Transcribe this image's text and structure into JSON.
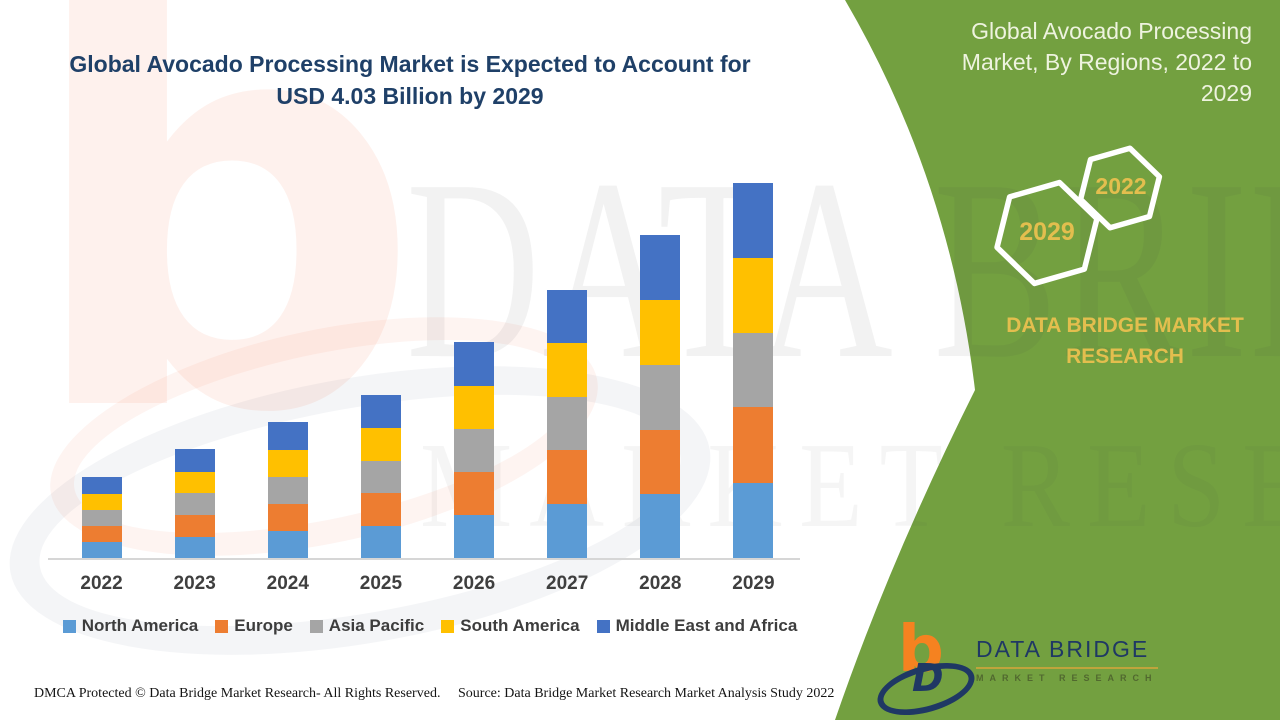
{
  "colors": {
    "green_panel": "#73A040",
    "title_blue": "#1F4068",
    "gold": "#E3BE4E",
    "logo_navy": "#1F3864",
    "logo_orange": "#F58220",
    "axis_gray": "#D6D6D6"
  },
  "main_title": {
    "line1": "Global Avocado Processing Market is Expected to Account for",
    "line2": "USD 4.03 Billion by 2029"
  },
  "chart_data": {
    "type": "bar",
    "stacked": true,
    "title": "Global Avocado Processing Market is Expected to Account for USD 4.03 Billion by 2029",
    "unit": "USD Billion",
    "categories": [
      "2022",
      "2023",
      "2024",
      "2025",
      "2026",
      "2027",
      "2028",
      "2029"
    ],
    "series": [
      {
        "name": "North America",
        "color": "#5B9BD5",
        "values": [
          0.17,
          0.23,
          0.29,
          0.35,
          0.46,
          0.58,
          0.69,
          0.81
        ]
      },
      {
        "name": "Europe",
        "color": "#ED7D31",
        "values": [
          0.17,
          0.23,
          0.29,
          0.35,
          0.46,
          0.58,
          0.69,
          0.81
        ]
      },
      {
        "name": "Asia Pacific",
        "color": "#A5A5A5",
        "values": [
          0.18,
          0.24,
          0.29,
          0.35,
          0.47,
          0.57,
          0.7,
          0.8
        ]
      },
      {
        "name": "South America",
        "color": "#FFC000",
        "values": [
          0.17,
          0.23,
          0.29,
          0.35,
          0.46,
          0.58,
          0.69,
          0.81
        ]
      },
      {
        "name": "Middle East and Africa",
        "color": "#4472C4",
        "values": [
          0.18,
          0.24,
          0.3,
          0.36,
          0.47,
          0.57,
          0.7,
          0.8
        ]
      }
    ],
    "totals": [
      0.87,
      1.17,
      1.46,
      1.76,
      2.32,
      2.88,
      3.47,
      4.03
    ],
    "ylim": [
      0,
      4.2
    ],
    "grid": false,
    "axis_labels_visible": {
      "x": true,
      "y": false
    },
    "legend_position": "bottom"
  },
  "footer": {
    "dmca": "DMCA Protected © Data Bridge Market Research- All Rights Reserved.",
    "source": "Source: Data Bridge Market Research Market Analysis Study 2022"
  },
  "side_panel": {
    "title": "Global Avocado Processing Market, By Regions, 2022 to 2029",
    "hex_back_label": "2029",
    "hex_front_label": "2022",
    "brand_text": "DATA BRIDGE MARKET RESEARCH",
    "logo": {
      "b_glyph": "b",
      "d_glyph": "D",
      "title": "DATA BRIDGE",
      "subtitle": "MARKET RESEARCH"
    }
  },
  "watermark": {
    "b_glyph": "b",
    "line1": "DATA BRIDGE",
    "line2": "MARKET RESEARCH"
  }
}
